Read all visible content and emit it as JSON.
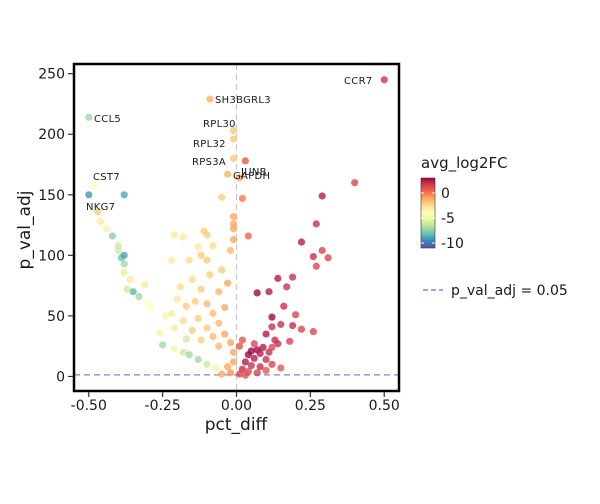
{
  "chart_data": {
    "type": "scatter",
    "xlabel": "pct_diff",
    "ylabel": "p_val_adj",
    "xlim": [
      -0.55,
      0.55
    ],
    "ylim": [
      -12,
      258
    ],
    "x_ticks": [
      -0.5,
      -0.25,
      0.0,
      0.25,
      0.5
    ],
    "x_tick_labels": [
      "-0.50",
      "-0.25",
      "0.00",
      "0.25",
      "0.50"
    ],
    "y_ticks": [
      0,
      50,
      100,
      150,
      200,
      250
    ],
    "y_tick_labels": [
      "0",
      "50",
      "100",
      "150",
      "200",
      "250"
    ],
    "grid": false,
    "reference_lines": {
      "horizontal": {
        "y": 1.3,
        "label": "p_val_adj = 0.05",
        "color": "#8080e0",
        "style": "dashed"
      },
      "vertical": {
        "x": 0,
        "color": "#c8c8c8",
        "style": "dashed"
      }
    },
    "color_scale": {
      "title": "avg_log2FC",
      "min": -11,
      "max": 3,
      "ticks": [
        0,
        -5,
        -10
      ],
      "tick_labels": [
        "0",
        "-5",
        "-10"
      ],
      "palette": [
        "#5e4fa2",
        "#3288bd",
        "#66c2a5",
        "#abdda4",
        "#e6f598",
        "#ffffbf",
        "#fee08b",
        "#fdae61",
        "#f46d43",
        "#d53e4f",
        "#9e0142"
      ]
    },
    "legend_position": "right",
    "labeled_points": [
      {
        "gene": "CCR7",
        "x": 0.5,
        "y": 245,
        "c": 1.5
      },
      {
        "gene": "SH3BGRL3",
        "x": -0.09,
        "y": 229,
        "c": -1.5
      },
      {
        "gene": "CCL5",
        "x": -0.5,
        "y": 214,
        "c": -7
      },
      {
        "gene": "RPL30",
        "x": -0.01,
        "y": 203,
        "c": -2
      },
      {
        "gene": "RPL32",
        "x": -0.01,
        "y": 196,
        "c": -2
      },
      {
        "gene": "RPS3A",
        "x": -0.01,
        "y": 180,
        "c": -2
      },
      {
        "gene": "JUNB",
        "x": 0.03,
        "y": 178,
        "c": 0.5
      },
      {
        "gene": "GAPDH",
        "x": -0.03,
        "y": 167,
        "c": -1.5
      },
      {
        "gene": "CST7",
        "x": -0.48,
        "y": 157,
        "c": -4
      },
      {
        "gene": "NKG7",
        "x": -0.5,
        "y": 150,
        "c": -9
      }
    ],
    "points": [
      {
        "x": 0.29,
        "y": 149,
        "c": 2.5
      },
      {
        "x": 0.4,
        "y": 160,
        "c": 1.5
      },
      {
        "x": -0.38,
        "y": 150,
        "c": -9
      },
      {
        "x": 0.27,
        "y": 126,
        "c": 2
      },
      {
        "x": 0.22,
        "y": 111,
        "c": 2.5
      },
      {
        "x": 0.29,
        "y": 104,
        "c": 1.5
      },
      {
        "x": 0.31,
        "y": 98,
        "c": 1.5
      },
      {
        "x": 0.26,
        "y": 99,
        "c": 2
      },
      {
        "x": 0.14,
        "y": 81,
        "c": 2.5
      },
      {
        "x": 0.19,
        "y": 82,
        "c": 2
      },
      {
        "x": 0.27,
        "y": 91,
        "c": 1.5
      },
      {
        "x": 0.17,
        "y": 74,
        "c": 2
      },
      {
        "x": 0.11,
        "y": 70,
        "c": 2.5
      },
      {
        "x": 0.07,
        "y": 69,
        "c": 3
      },
      {
        "x": 0.16,
        "y": 58,
        "c": 2
      },
      {
        "x": 0.12,
        "y": 49,
        "c": 3
      },
      {
        "x": 0.2,
        "y": 51,
        "c": 1.5
      },
      {
        "x": 0.19,
        "y": 42,
        "c": 2
      },
      {
        "x": 0.15,
        "y": 43,
        "c": 2
      },
      {
        "x": 0.12,
        "y": 41,
        "c": 2
      },
      {
        "x": 0.26,
        "y": 37,
        "c": 1.5
      },
      {
        "x": 0.22,
        "y": 39,
        "c": 1.5
      },
      {
        "x": 0.1,
        "y": 35,
        "c": 2.5
      },
      {
        "x": 0.13,
        "y": 30,
        "c": 2
      },
      {
        "x": 0.18,
        "y": 29,
        "c": 1.5
      },
      {
        "x": 0.14,
        "y": 27,
        "c": 2
      },
      {
        "x": 0.09,
        "y": 24,
        "c": 2.5
      },
      {
        "x": 0.07,
        "y": 22,
        "c": 3
      },
      {
        "x": 0.05,
        "y": 21,
        "c": 3
      },
      {
        "x": 0.04,
        "y": 18,
        "c": 3
      },
      {
        "x": 0.08,
        "y": 19,
        "c": 2.5
      },
      {
        "x": 0.11,
        "y": 20,
        "c": 2
      },
      {
        "x": 0.12,
        "y": 24,
        "c": 1.5
      },
      {
        "x": 0.06,
        "y": 15,
        "c": 2.5
      },
      {
        "x": 0.03,
        "y": 12,
        "c": 2.5
      },
      {
        "x": 0.1,
        "y": 14,
        "c": 2
      },
      {
        "x": 0.05,
        "y": 9,
        "c": 2
      },
      {
        "x": 0.08,
        "y": 8,
        "c": 2
      },
      {
        "x": 0.02,
        "y": 6,
        "c": 2
      },
      {
        "x": 0.12,
        "y": 10,
        "c": 1.5
      },
      {
        "x": 0.04,
        "y": 4,
        "c": 1.5
      },
      {
        "x": 0.07,
        "y": 3,
        "c": 1.5
      },
      {
        "x": 0.01,
        "y": 2,
        "c": 1.5
      },
      {
        "x": 0.1,
        "y": 5,
        "c": 1
      },
      {
        "x": 0.03,
        "y": 1,
        "c": 1
      },
      {
        "x": 0.15,
        "y": 7,
        "c": 1
      },
      {
        "x": 0.06,
        "y": 27,
        "c": 1.5
      },
      {
        "x": 0.01,
        "y": 25,
        "c": 1
      },
      {
        "x": 0.02,
        "y": 30,
        "c": 1
      },
      {
        "x": 0.04,
        "y": 116,
        "c": 0.5
      },
      {
        "x": -0.1,
        "y": 117,
        "c": -2
      },
      {
        "x": -0.08,
        "y": 108,
        "c": -2.5
      },
      {
        "x": -0.13,
        "y": 107,
        "c": -3
      },
      {
        "x": -0.18,
        "y": 115,
        "c": -3
      },
      {
        "x": -0.21,
        "y": 117,
        "c": -3
      },
      {
        "x": -0.01,
        "y": 132,
        "c": -1
      },
      {
        "x": -0.01,
        "y": 126,
        "c": -1
      },
      {
        "x": -0.01,
        "y": 122,
        "c": -1
      },
      {
        "x": -0.01,
        "y": 113,
        "c": -1
      },
      {
        "x": -0.02,
        "y": 104,
        "c": -1.5
      },
      {
        "x": -0.12,
        "y": 100,
        "c": -2
      },
      {
        "x": -0.1,
        "y": 96,
        "c": -2
      },
      {
        "x": -0.16,
        "y": 96,
        "c": -2.5
      },
      {
        "x": -0.22,
        "y": 96,
        "c": -3
      },
      {
        "x": -0.05,
        "y": 88,
        "c": -2
      },
      {
        "x": -0.09,
        "y": 84,
        "c": -2
      },
      {
        "x": -0.15,
        "y": 80,
        "c": -2.5
      },
      {
        "x": -0.19,
        "y": 74,
        "c": -2.5
      },
      {
        "x": -0.12,
        "y": 72,
        "c": -2
      },
      {
        "x": -0.03,
        "y": 77,
        "c": -1
      },
      {
        "x": -0.06,
        "y": 70,
        "c": -1.5
      },
      {
        "x": -0.14,
        "y": 62,
        "c": -2
      },
      {
        "x": -0.2,
        "y": 64,
        "c": -3
      },
      {
        "x": -0.1,
        "y": 60,
        "c": -1.5
      },
      {
        "x": -0.04,
        "y": 57,
        "c": -1
      },
      {
        "x": -0.17,
        "y": 58,
        "c": -2
      },
      {
        "x": -0.22,
        "y": 52,
        "c": -3
      },
      {
        "x": -0.24,
        "y": 50,
        "c": -5
      },
      {
        "x": -0.08,
        "y": 52,
        "c": -1.5
      },
      {
        "x": -0.13,
        "y": 48,
        "c": -2
      },
      {
        "x": -0.18,
        "y": 46,
        "c": -2.5
      },
      {
        "x": -0.06,
        "y": 44,
        "c": -1.5
      },
      {
        "x": -0.1,
        "y": 40,
        "c": -2
      },
      {
        "x": -0.15,
        "y": 38,
        "c": -2
      },
      {
        "x": -0.21,
        "y": 40,
        "c": -3
      },
      {
        "x": -0.04,
        "y": 35,
        "c": -1
      },
      {
        "x": -0.08,
        "y": 33,
        "c": -1.5
      },
      {
        "x": -0.12,
        "y": 30,
        "c": -2
      },
      {
        "x": -0.02,
        "y": 28,
        "c": -1
      },
      {
        "x": -0.06,
        "y": 25,
        "c": -1.5
      },
      {
        "x": -0.01,
        "y": 20,
        "c": -1
      },
      {
        "x": -0.01,
        "y": 12,
        "c": -1
      },
      {
        "x": -0.03,
        "y": 8,
        "c": -1
      },
      {
        "x": -0.02,
        "y": 3,
        "c": -0.5
      },
      {
        "x": -0.05,
        "y": 2,
        "c": -1
      },
      {
        "x": -0.26,
        "y": 36,
        "c": -3.5
      },
      {
        "x": -0.3,
        "y": 60,
        "c": -4
      },
      {
        "x": -0.33,
        "y": 66,
        "c": -7
      },
      {
        "x": -0.35,
        "y": 70,
        "c": -8.5
      },
      {
        "x": -0.37,
        "y": 72,
        "c": -6
      },
      {
        "x": -0.38,
        "y": 86,
        "c": -5.5
      },
      {
        "x": -0.38,
        "y": 93,
        "c": -7
      },
      {
        "x": -0.39,
        "y": 98,
        "c": -8
      },
      {
        "x": -0.38,
        "y": 100,
        "c": -9
      },
      {
        "x": -0.4,
        "y": 108,
        "c": -6
      },
      {
        "x": -0.42,
        "y": 116,
        "c": -7.5
      },
      {
        "x": -0.44,
        "y": 122,
        "c": -5
      },
      {
        "x": -0.46,
        "y": 128,
        "c": -3
      },
      {
        "x": -0.47,
        "y": 136,
        "c": -2
      },
      {
        "x": -0.36,
        "y": 80,
        "c": -3
      },
      {
        "x": -0.31,
        "y": 76,
        "c": -3
      },
      {
        "x": -0.05,
        "y": 148,
        "c": -2
      },
      {
        "x": 0.02,
        "y": 147,
        "c": 0
      },
      {
        "x": 0.01,
        "y": 164,
        "c": -1
      },
      {
        "x": -0.11,
        "y": 120,
        "c": -2
      },
      {
        "x": -0.4,
        "y": 104,
        "c": -6
      },
      {
        "x": -0.29,
        "y": 57,
        "c": -4
      },
      {
        "x": -0.21,
        "y": 23,
        "c": -5
      },
      {
        "x": -0.18,
        "y": 20,
        "c": -6
      },
      {
        "x": -0.16,
        "y": 18,
        "c": -7
      },
      {
        "x": -0.13,
        "y": 14,
        "c": -7
      },
      {
        "x": -0.1,
        "y": 10,
        "c": -6
      },
      {
        "x": -0.07,
        "y": 7,
        "c": -5
      },
      {
        "x": -0.25,
        "y": 26,
        "c": -7
      },
      {
        "x": -0.17,
        "y": 31,
        "c": -6
      }
    ]
  },
  "colorbar_gradient_id": "cbar-gradient"
}
